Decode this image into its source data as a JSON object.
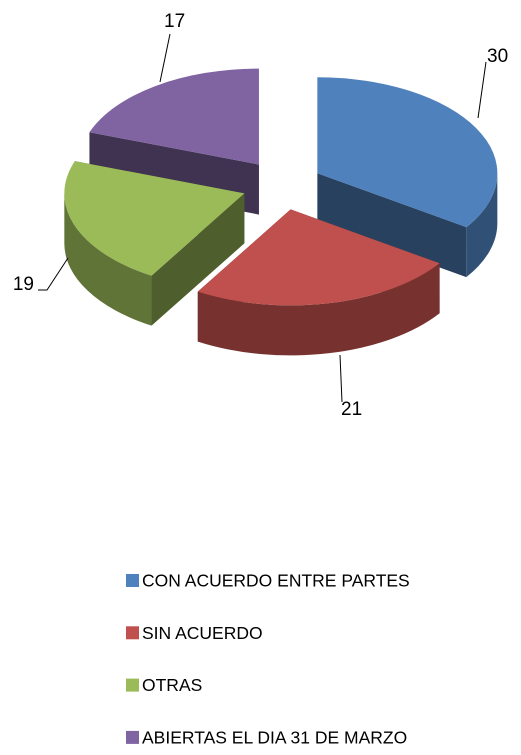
{
  "chart_data": {
    "type": "pie",
    "categories": [
      "CON ACUERDO ENTRE PARTES",
      "SIN ACUERDO",
      "OTRAS",
      "ABIERTAS EL DIA 31 DE MARZO"
    ],
    "values": [
      30,
      21,
      19,
      17
    ],
    "colors": [
      "#4f81bd",
      "#c0504d",
      "#9bbb59",
      "#8064a2"
    ],
    "legend": "bottom",
    "three_d": true,
    "exploded": true
  }
}
